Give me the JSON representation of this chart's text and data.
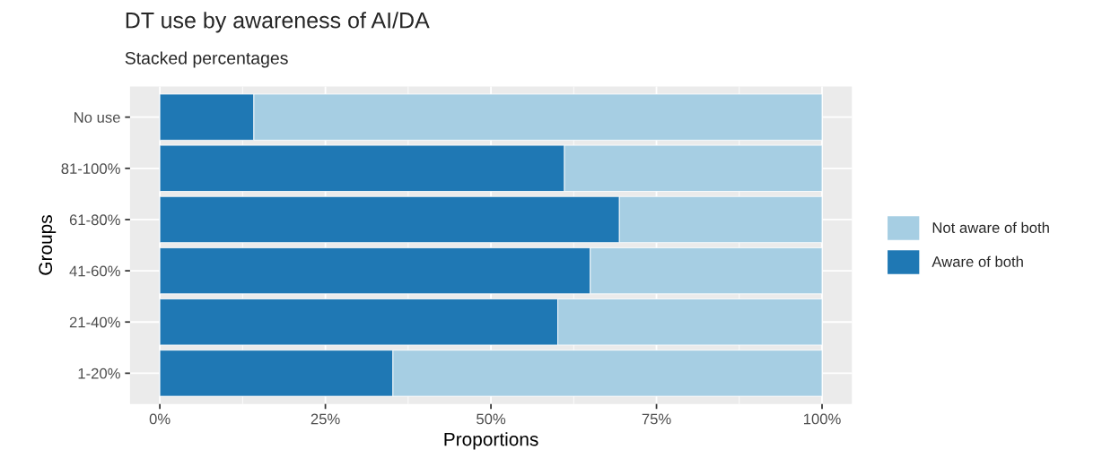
{
  "chart_data": {
    "type": "bar",
    "orientation": "horizontal",
    "stacked": true,
    "title": "DT use by awareness of AI/DA",
    "subtitle": "Stacked percentages",
    "xlabel": "Proportions",
    "ylabel": "Groups",
    "categories": [
      "No use",
      "81-100%",
      "61-80%",
      "41-60%",
      "21-40%",
      "1-20%"
    ],
    "series": [
      {
        "name": "Aware of both",
        "color": "#1f78b4",
        "values": [
          14.2,
          61.1,
          69.4,
          65.0,
          60.1,
          35.2
        ]
      },
      {
        "name": "Not aware of both",
        "color": "#a6cee3",
        "values": [
          85.8,
          38.9,
          30.6,
          35.0,
          39.9,
          64.8
        ]
      }
    ],
    "xlim": [
      -4.5,
      104.5
    ],
    "xticks": [
      {
        "value": 0,
        "label": "0%"
      },
      {
        "value": 25,
        "label": "25%"
      },
      {
        "value": 50,
        "label": "50%"
      },
      {
        "value": 75,
        "label": "75%"
      },
      {
        "value": 100,
        "label": "100%"
      }
    ],
    "grid": true,
    "legend": "right"
  }
}
